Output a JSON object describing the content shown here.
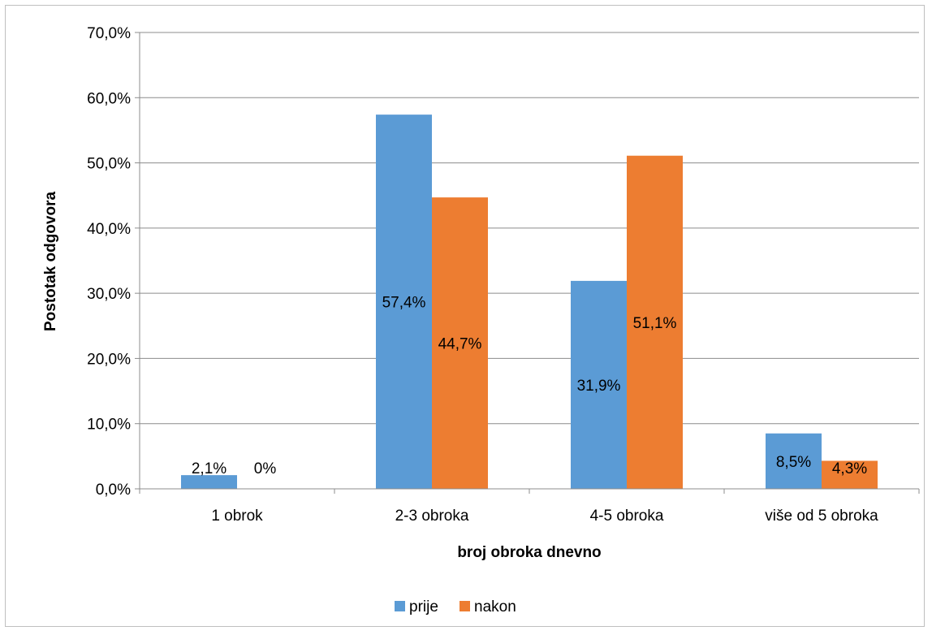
{
  "chart_data": {
    "type": "bar",
    "title": "",
    "xlabel": "broj obroka dnevno",
    "ylabel": "Postotak odgovora",
    "ylim": [
      0,
      70
    ],
    "yticks": [
      "0,0%",
      "10,0%",
      "20,0%",
      "30,0%",
      "40,0%",
      "50,0%",
      "60,0%",
      "70,0%"
    ],
    "categories": [
      "1 obrok",
      "2-3 obroka",
      "4-5 obroka",
      "više od 5 obroka"
    ],
    "series": [
      {
        "name": "prije",
        "color": "#5b9bd5",
        "values": [
          2.1,
          57.4,
          31.9,
          8.5
        ],
        "labels": [
          "2,1%",
          "57,4%",
          "31,9%",
          "8,5%"
        ]
      },
      {
        "name": "nakon",
        "color": "#ed7d31",
        "values": [
          0,
          44.7,
          51.1,
          4.3
        ],
        "labels": [
          "0%",
          "44,7%",
          "51,1%",
          "4,3%"
        ]
      }
    ],
    "grid": true,
    "legend": "bottom"
  }
}
